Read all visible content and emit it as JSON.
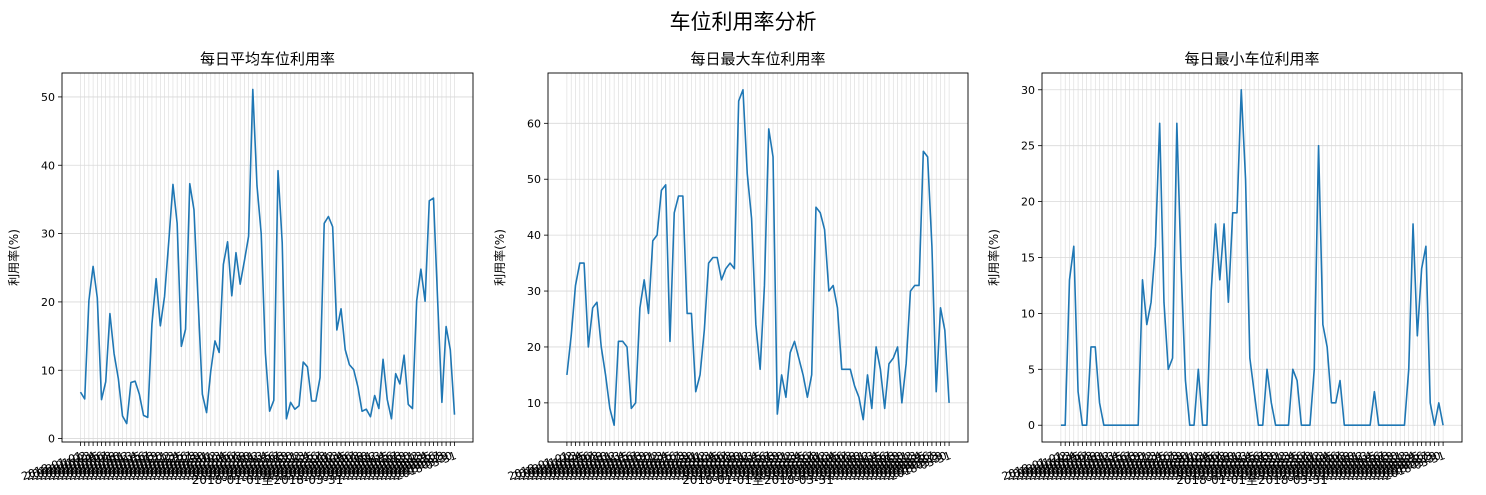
{
  "figure_title": "车位利用率分析",
  "date_range_label": "2018-01-01至2018-03-31",
  "colors": {
    "line": "#1f77b4",
    "grid": "#d9d9d9",
    "axis": "#000000"
  },
  "chart_data": [
    {
      "type": "line",
      "title": "每日平均车位利用率",
      "xlabel": "2018-01-01至2018-03-31",
      "ylabel": "利用率(%)",
      "x_start": "2018-01-01",
      "x_end": "2018-03-31",
      "ylim": [
        -0.5,
        53.5
      ],
      "yticks": [
        0,
        10,
        20,
        30,
        40,
        50
      ],
      "grid": true,
      "values": [
        6.8,
        5.8,
        20.2,
        25.2,
        20.6,
        5.7,
        8.3,
        18.3,
        12.4,
        8.8,
        3.3,
        2.2,
        8.2,
        8.4,
        6.5,
        3.4,
        3.1,
        16.8,
        23.4,
        16.5,
        20.8,
        28.8,
        37.2,
        31.5,
        13.5,
        16.0,
        37.3,
        33.5,
        20.0,
        6.5,
        3.8,
        9.9,
        14.3,
        12.6,
        25.5,
        28.8,
        20.9,
        27.2,
        22.6,
        26.0,
        29.6,
        51.1,
        37.0,
        30.0,
        12.5,
        4.0,
        5.6,
        39.2,
        28.7,
        2.9,
        5.3,
        4.3,
        4.8,
        11.2,
        10.5,
        5.5,
        5.5,
        8.9,
        31.5,
        32.5,
        31.0,
        15.9,
        19.0,
        13.0,
        10.8,
        10.1,
        7.6,
        4.0,
        4.3,
        3.2,
        6.3,
        4.4,
        11.6,
        5.7,
        2.9,
        9.5,
        8.0,
        12.2,
        5.0,
        4.4,
        20.2,
        24.8,
        20.1,
        34.8,
        35.2,
        20.0,
        5.3,
        16.4,
        13.0,
        3.5
      ]
    },
    {
      "type": "line",
      "title": "每日最大车位利用率",
      "xlabel": "2018-01-01至2018-03-31",
      "ylabel": "利用率(%)",
      "x_start": "2018-01-01",
      "x_end": "2018-03-31",
      "ylim": [
        3.0,
        69.0
      ],
      "yticks": [
        10,
        20,
        30,
        40,
        50,
        60
      ],
      "grid": true,
      "values": [
        15,
        22,
        31,
        35,
        35,
        20,
        27,
        28,
        20,
        15,
        9,
        6,
        21,
        21,
        20,
        9,
        10,
        27,
        32,
        26,
        39,
        40,
        48,
        49,
        21,
        44,
        47,
        47,
        26,
        26,
        12,
        15,
        23,
        35,
        36,
        36,
        32,
        34,
        35,
        34,
        64,
        66,
        51,
        43,
        24,
        16,
        31,
        59,
        54,
        8,
        15,
        11,
        19,
        21,
        18,
        15,
        11,
        15,
        45,
        44,
        41,
        30,
        31,
        27,
        16,
        16,
        16,
        13,
        11,
        7,
        15,
        9,
        20,
        16,
        9,
        17,
        18,
        20,
        10,
        17,
        30,
        31,
        31,
        55,
        54,
        38,
        12,
        27,
        23,
        10
      ]
    },
    {
      "type": "line",
      "title": "每日最小车位利用率",
      "xlabel": "2018-01-01至2018-03-31",
      "ylabel": "利用率(%)",
      "x_start": "2018-01-01",
      "x_end": "2018-03-31",
      "ylim": [
        -1.5,
        31.5
      ],
      "yticks": [
        0,
        5,
        10,
        15,
        20,
        25,
        30
      ],
      "grid": true,
      "values": [
        0,
        0,
        13,
        16,
        3,
        0,
        0,
        7,
        7,
        2,
        0,
        0,
        0,
        0,
        0,
        0,
        0,
        0,
        0,
        13,
        9,
        11,
        16,
        27,
        11,
        5,
        6,
        27,
        14,
        4,
        0,
        0,
        5,
        0,
        0,
        12,
        18,
        13,
        18,
        11,
        19,
        19,
        30,
        22,
        6,
        3,
        0,
        0,
        5,
        2,
        0,
        0,
        0,
        0,
        5,
        4,
        0,
        0,
        0,
        5,
        25,
        9,
        7,
        2,
        2,
        4,
        0,
        0,
        0,
        0,
        0,
        0,
        0,
        3,
        0,
        0,
        0,
        0,
        0,
        0,
        0,
        5,
        18,
        8,
        14,
        16,
        2,
        0,
        2,
        0
      ]
    }
  ]
}
